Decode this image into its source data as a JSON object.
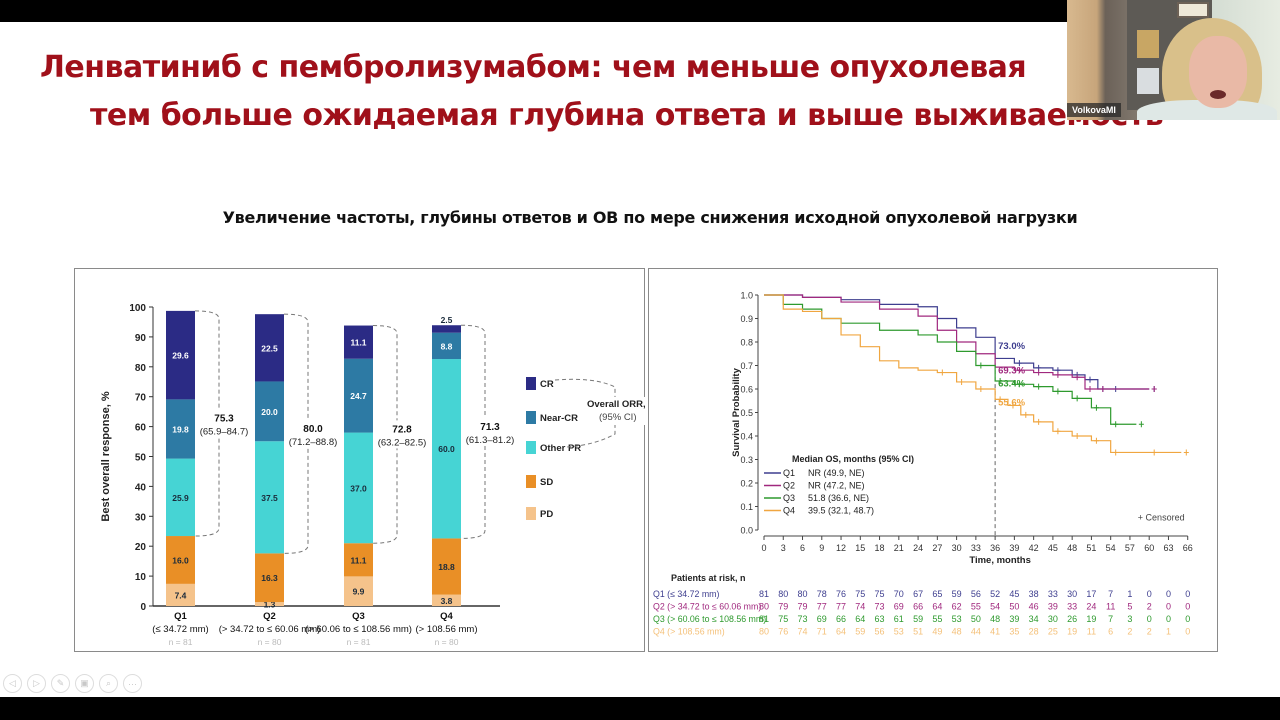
{
  "slide": {
    "title_line1": "Ленватиниб с пембролизумабом: чем меньше опухолевая",
    "title_line2": "тем больше ожидаемая глубина ответа и выше выживаемость",
    "subtitle": "Увеличение частоты, глубины ответов и ОВ по мере снижения исходной опухолевой нагрузки"
  },
  "video": {
    "participant_name": "VolkovaMI"
  },
  "presenter_controls": [
    {
      "name": "previous-slide-button",
      "icon": "◁"
    },
    {
      "name": "next-slide-button",
      "icon": "▷"
    },
    {
      "name": "pen-tool-button",
      "icon": "✎"
    },
    {
      "name": "slides-overview-button",
      "icon": "▣"
    },
    {
      "name": "zoom-button",
      "icon": "⌕"
    },
    {
      "name": "more-options-button",
      "icon": "···"
    }
  ],
  "colors": {
    "title": "#a0101a",
    "CR": "#2b2b85",
    "Near-CR": "#2d7aa4",
    "Other PR": "#46d4d4",
    "SD": "#e98f26",
    "PD": "#f5c38b",
    "Q1": "#3e3e8f",
    "Q2": "#a0287e",
    "Q3": "#2e9a2e",
    "Q4": "#f0a640"
  },
  "chart_data": [
    {
      "type": "bar",
      "stacked": true,
      "title": "",
      "xlabel": "",
      "ylabel": "Best overall response, %",
      "ylim": [
        0,
        100
      ],
      "yticks": [
        0,
        10,
        20,
        30,
        40,
        50,
        60,
        70,
        80,
        90,
        100
      ],
      "categories": [
        "Q1",
        "Q2",
        "Q3",
        "Q4"
      ],
      "category_sublabels": [
        "(≤ 34.72 mm)",
        "(> 34.72 to ≤ 60.06 mm)",
        "(> 60.06 to ≤ 108.56 mm)",
        "(> 108.56 mm)"
      ],
      "category_n": [
        "n = 81",
        "n = 80",
        "n = 81",
        "n = 80"
      ],
      "series": [
        {
          "name": "PD",
          "values": [
            7.4,
            1.3,
            9.9,
            3.8
          ]
        },
        {
          "name": "SD",
          "values": [
            16.0,
            16.3,
            11.1,
            18.8
          ]
        },
        {
          "name": "Other PR",
          "values": [
            25.9,
            37.5,
            37.0,
            60.0
          ]
        },
        {
          "name": "Near-CR",
          "values": [
            19.8,
            20.0,
            24.7,
            8.8
          ]
        },
        {
          "name": "CR",
          "values": [
            29.6,
            22.5,
            11.1,
            2.5
          ]
        }
      ],
      "legend": [
        "CR",
        "Near-CR",
        "Other PR",
        "SD",
        "PD"
      ],
      "legend_position": "right",
      "orr": [
        {
          "value": "75.3",
          "ci": "(65.9–84.7)"
        },
        {
          "value": "80.0",
          "ci": "(71.2–88.8)"
        },
        {
          "value": "72.8",
          "ci": "(63.2–82.5)"
        },
        {
          "value": "71.3",
          "ci": "(61.3–81.2)"
        }
      ],
      "orr_label": "Overall ORR, %",
      "orr_label_ci": "(95% CI)"
    },
    {
      "type": "line",
      "subtype": "kaplan-meier",
      "title": "",
      "xlabel": "Time, months",
      "ylabel": "Survival Probability",
      "xlim": [
        0,
        66
      ],
      "ylim": [
        0.0,
        1.0
      ],
      "xticks": [
        0,
        3,
        6,
        9,
        12,
        15,
        18,
        21,
        24,
        27,
        30,
        33,
        36,
        39,
        42,
        45,
        48,
        51,
        54,
        57,
        60,
        63,
        66
      ],
      "yticks": [
        0.0,
        0.1,
        0.2,
        0.3,
        0.4,
        0.5,
        0.6,
        0.7,
        0.8,
        0.9,
        1.0
      ],
      "reference_line_x": 36,
      "annotations_at_36": [
        {
          "series": "Q1",
          "text": "73.0%"
        },
        {
          "series": "Q2",
          "text": "69.3%"
        },
        {
          "series": "Q3",
          "text": "63.4%"
        },
        {
          "series": "Q4",
          "text": "55.6%"
        }
      ],
      "censored_label": "+ Censored",
      "legend_title": "Median OS, months (95% CI)",
      "legend": [
        {
          "name": "Q1",
          "median": "NR (49.9, NE)"
        },
        {
          "name": "Q2",
          "median": "NR (47.2, NE)"
        },
        {
          "name": "Q3",
          "median": "51.8 (36.6, NE)"
        },
        {
          "name": "Q4",
          "median": "39.5 (32.1, 48.7)"
        }
      ],
      "series": [
        {
          "name": "Q1",
          "x": [
            0,
            6,
            12,
            18,
            24,
            27,
            30,
            33,
            36,
            39,
            42,
            45,
            48,
            50,
            52,
            54,
            60
          ],
          "y": [
            1.0,
            0.99,
            0.98,
            0.96,
            0.95,
            0.9,
            0.86,
            0.82,
            0.73,
            0.71,
            0.69,
            0.68,
            0.66,
            0.64,
            0.6,
            0.6,
            0.6
          ]
        },
        {
          "name": "Q2",
          "x": [
            0,
            6,
            12,
            18,
            24,
            27,
            30,
            33,
            36,
            39,
            42,
            45,
            48,
            50,
            52,
            60
          ],
          "y": [
            1.0,
            0.99,
            0.97,
            0.94,
            0.91,
            0.85,
            0.8,
            0.75,
            0.693,
            0.68,
            0.67,
            0.66,
            0.65,
            0.6,
            0.6,
            0.6
          ]
        },
        {
          "name": "Q3",
          "x": [
            0,
            3,
            6,
            9,
            12,
            18,
            24,
            27,
            30,
            33,
            36,
            39,
            42,
            45,
            48,
            51,
            54,
            58
          ],
          "y": [
            1.0,
            0.96,
            0.94,
            0.9,
            0.88,
            0.85,
            0.83,
            0.8,
            0.76,
            0.7,
            0.634,
            0.62,
            0.61,
            0.59,
            0.56,
            0.52,
            0.45,
            0.45
          ]
        },
        {
          "name": "Q4",
          "x": [
            0,
            3,
            6,
            9,
            12,
            15,
            18,
            21,
            24,
            27,
            30,
            33,
            36,
            38,
            40,
            42,
            45,
            48,
            51,
            54,
            60,
            65
          ],
          "y": [
            1.0,
            0.94,
            0.93,
            0.9,
            0.83,
            0.78,
            0.72,
            0.69,
            0.68,
            0.67,
            0.63,
            0.6,
            0.556,
            0.53,
            0.49,
            0.46,
            0.42,
            0.4,
            0.38,
            0.33,
            0.33,
            0.33
          ]
        }
      ],
      "at_risk_title": "Patients at risk, n",
      "at_risk": [
        {
          "label": "Q1 (≤ 34.72 mm)",
          "values": [
            81,
            80,
            80,
            78,
            76,
            75,
            75,
            70,
            67,
            65,
            59,
            56,
            52,
            45,
            38,
            33,
            30,
            17,
            7,
            1,
            0,
            0,
            0
          ]
        },
        {
          "label": "Q2 (> 34.72 to ≤ 60.06 mm)",
          "values": [
            80,
            79,
            79,
            77,
            77,
            74,
            73,
            69,
            66,
            64,
            62,
            55,
            54,
            50,
            46,
            39,
            33,
            24,
            11,
            5,
            2,
            0,
            0
          ]
        },
        {
          "label": "Q3 (> 60.06 to ≤ 108.56 mm)",
          "values": [
            81,
            75,
            73,
            69,
            66,
            64,
            63,
            61,
            59,
            55,
            53,
            50,
            48,
            39,
            34,
            30,
            26,
            19,
            7,
            3,
            0,
            0,
            0
          ]
        },
        {
          "label": "Q4 (> 108.56 mm)",
          "values": [
            80,
            76,
            74,
            71,
            64,
            59,
            56,
            53,
            51,
            49,
            48,
            44,
            41,
            35,
            28,
            25,
            19,
            11,
            6,
            2,
            2,
            1,
            0
          ]
        }
      ]
    }
  ]
}
